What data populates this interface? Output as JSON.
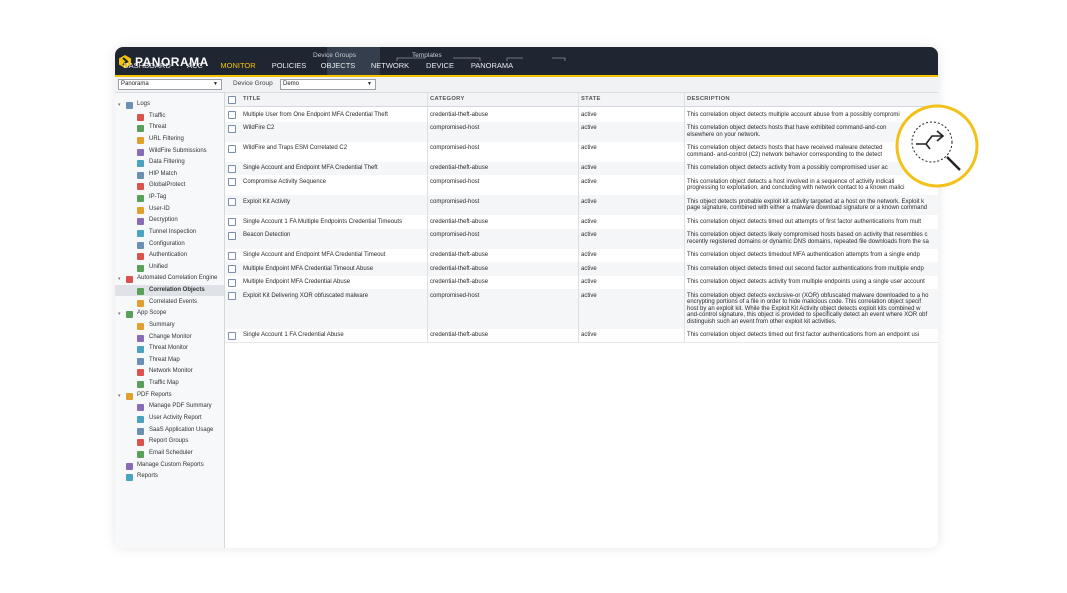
{
  "header": {
    "logo": "PANORAMA",
    "nav": [
      "DASHBOARD",
      "ACC",
      "MONITOR",
      "POLICIES",
      "OBJECTS",
      "NETWORK",
      "DEVICE",
      "PANORAMA"
    ],
    "groups": [
      "Device Groups",
      "Templates"
    ]
  },
  "toolbar": {
    "context": "Panorama",
    "device_group_label": "Device Group",
    "device_group": "Demo"
  },
  "sidebar": {
    "sections": [
      {
        "label": "Logs",
        "children": [
          "Traffic",
          "Threat",
          "URL Filtering",
          "WildFire Submissions",
          "Data Filtering",
          "HIP Match",
          "GlobalProtect",
          "IP-Tag",
          "User-ID",
          "Decryption",
          "Tunnel Inspection",
          "Configuration",
          "Authentication",
          "Unified"
        ]
      },
      {
        "label": "Automated Correlation Engine",
        "children": [
          "Correlation Objects",
          "Correlated Events"
        ]
      },
      {
        "label": "App Scope",
        "children": [
          "Summary",
          "Change Monitor",
          "Threat Monitor",
          "Threat Map",
          "Network Monitor",
          "Traffic Map"
        ]
      },
      {
        "label": "PDF Reports",
        "children": [
          "Manage PDF Summary",
          "User Activity Report",
          "SaaS Application Usage",
          "Report Groups",
          "Email Scheduler"
        ]
      },
      {
        "label": "Manage Custom Reports"
      },
      {
        "label": "Reports"
      }
    ]
  },
  "table": {
    "columns": [
      "TITLE",
      "CATEGORY",
      "STATE",
      "DESCRIPTION"
    ],
    "rows": [
      [
        "Multiple User from One Endpoint MFA Credential Theft",
        "credential-theft-abuse",
        "active",
        [
          "This correlation object detects multiple account abuse from a possibly compromi"
        ]
      ],
      [
        "WildFire C2",
        "compromised-host",
        "active",
        [
          "This correlation object detects hosts that have exhibited command-and-con",
          "elsewhere on your network."
        ]
      ],
      [
        "WildFire and Traps ESM Correlated C2",
        "compromised-host",
        "active",
        [
          "This correlation object detects hosts that have received malware detected",
          "command- and-control (C2) network behavior corresponding to the detect"
        ]
      ],
      [
        "Single Account and Endpoint MFA Credential Theft",
        "credential-theft-abuse",
        "active",
        [
          "This correlation object detects activity from a possibly compromised user ac"
        ]
      ],
      [
        "Compromise Activity Sequence",
        "compromised-host",
        "active",
        [
          "This correlation object detects a host involved in a sequence of activity indicati",
          "progressing to exploitation, and concluding with network contact to a known malici"
        ]
      ],
      [
        "Exploit Kit Activity",
        "compromised-host",
        "active",
        [
          "This object detects probable exploit kit activity targeted at a host on the network. Exploit k",
          "page signature, combined with either a malware download signature or a known command"
        ]
      ],
      [
        "Single Account 1 FA Multiple Endpoints Credential Timeouts",
        "credential-theft-abuse",
        "active",
        [
          "This correlation object detects timed out attempts of first factor authentications from mult"
        ]
      ],
      [
        "Beacon Detection",
        "compromised-host",
        "active",
        [
          "This correlation object detects likely compromised hosts based on activity that resembles c",
          "recently registered domains or dynamic DNS domains, repeated file downloads from the sa"
        ]
      ],
      [
        "Single Account and Endpoint MFA Credential Timeout",
        "credential-theft-abuse",
        "active",
        [
          "This correlation object detects timedout MFA authentication attempts from a single endp"
        ]
      ],
      [
        "Multiple Endpoint MFA Credential Timeout Abuse",
        "credential-theft-abuse",
        "active",
        [
          "This correlation object detects timed out second factor authentications from multiple endp"
        ]
      ],
      [
        "Multiple Endpoint MFA Credential Abuse",
        "credential-theft-abuse",
        "active",
        [
          "This correlation object detects activity from multiple endpoints using a single user account"
        ]
      ],
      [
        "Exploit Kit Delivering XOR obfuscated malware",
        "compromised-host",
        "active",
        [
          "This correlation object detects exclusive-or (XOR) obfuscated malware downloaded to a ho",
          "encrypting portions of a file in order to hide malicious code. This correlation object specif",
          "host by an exploit kit. While the Exploit Kit Activity object detects exploit kits combined w",
          "and-control signature, this object is provided to specifically detect an event where XOR obf",
          "distinguish such an event from other exploit kit activities."
        ]
      ],
      [
        "Single Account 1 FA Credential Abuse",
        "credential-theft-abuse",
        "active",
        [
          "This correlation object detects timed out first factor authentications from an endpoint usi"
        ]
      ]
    ]
  }
}
